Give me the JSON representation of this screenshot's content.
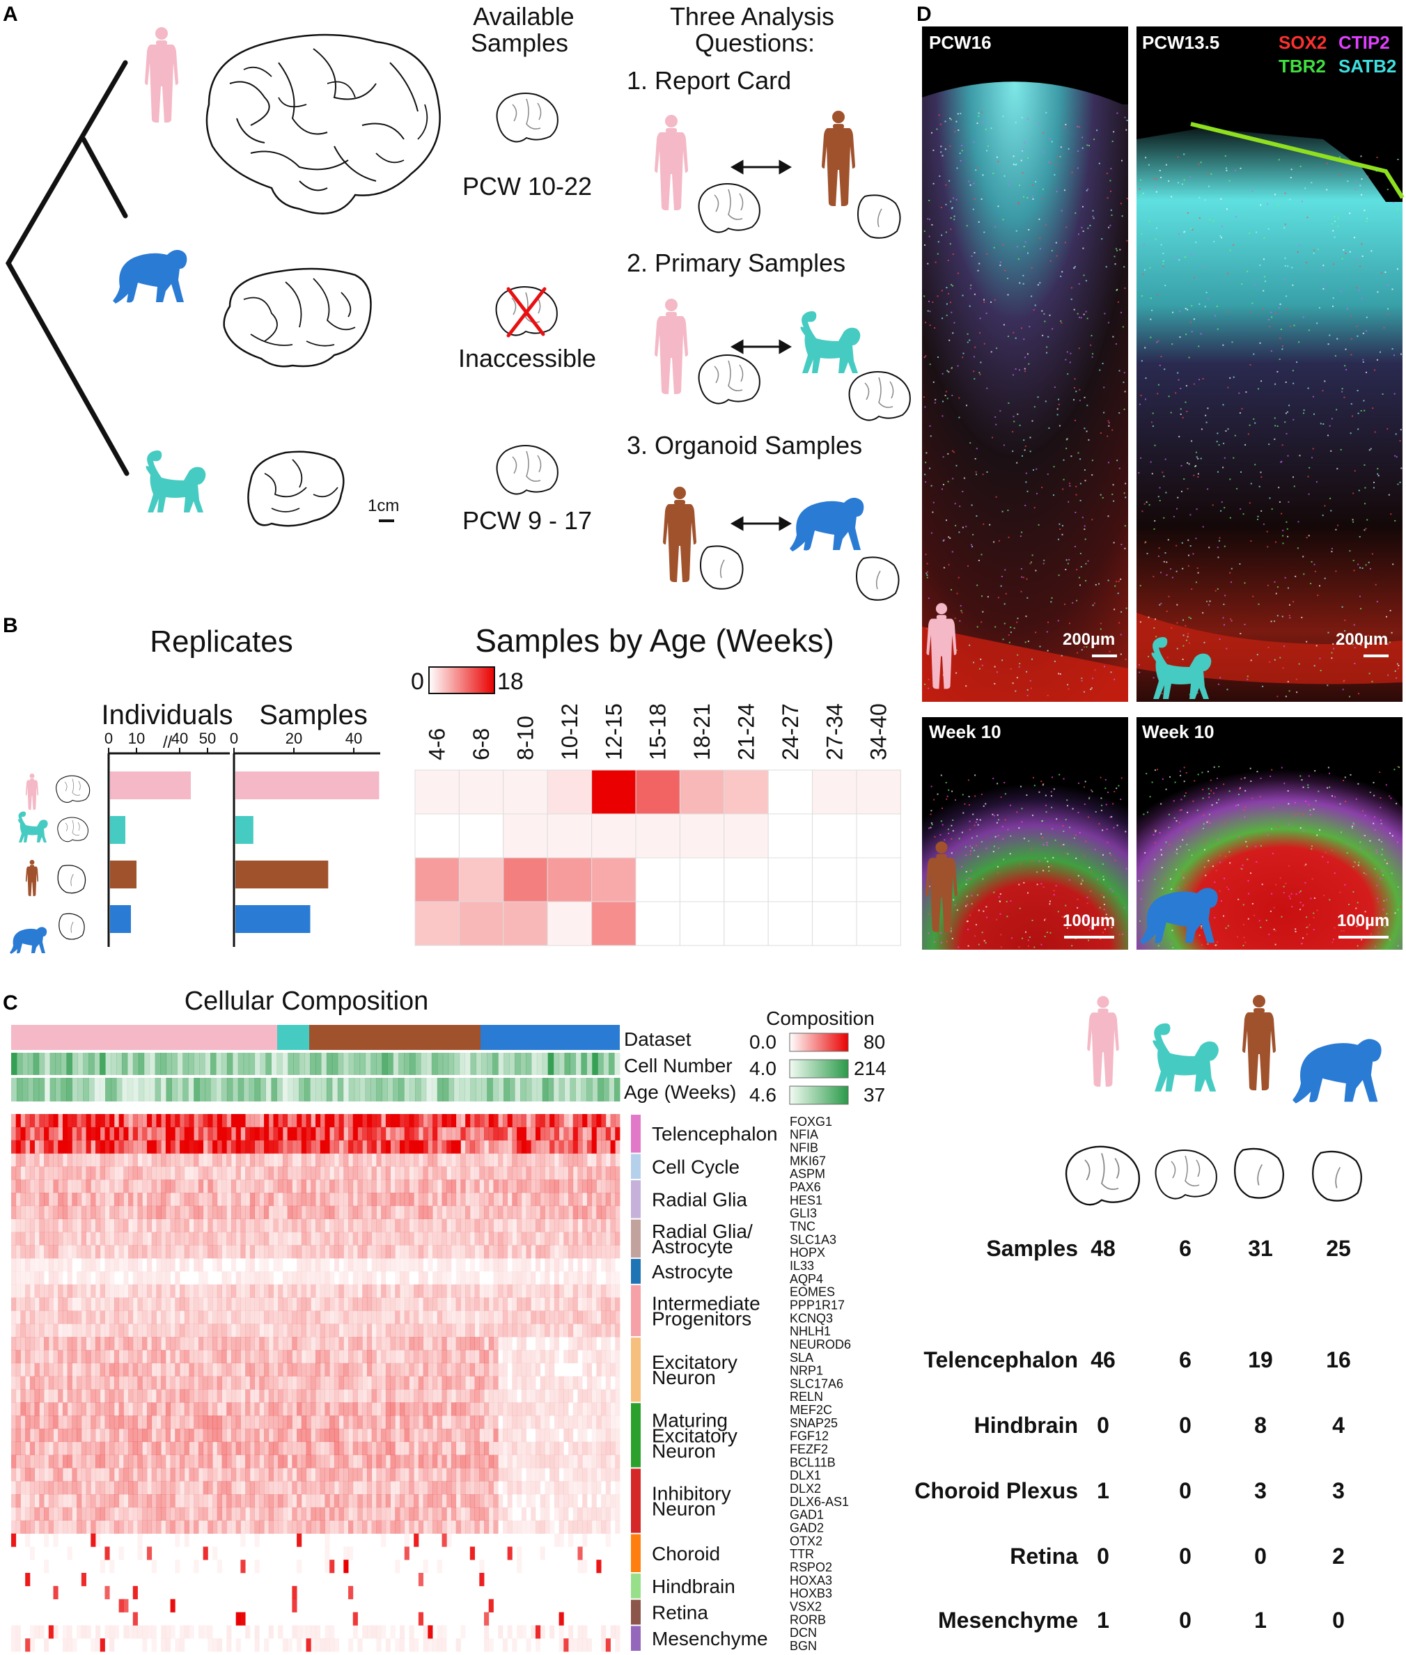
{
  "colors": {
    "human": "#f4b8c6",
    "macaque": "#45cbc1",
    "organoid_human": "#a0522d",
    "organoid_chimp": "#2a7bd4",
    "heat": "#ea0000",
    "green": "#2a9a4a"
  },
  "panel_a": {
    "label": "A",
    "col_available": [
      "Available",
      "Samples"
    ],
    "col_questions": [
      "Three Analysis",
      "Questions:"
    ],
    "human_age": "PCW 10-22",
    "chimp_status": "Inaccessible",
    "macaque_age": "PCW 9 - 17",
    "scale": "1cm",
    "q1": "1. Report Card",
    "q2": "2. Primary Samples",
    "q3": "3. Organoid Samples"
  },
  "panel_b": {
    "label": "B",
    "replicates_title": "Replicates",
    "individuals_label": "Individuals",
    "samples_label": "Samples",
    "age_title": "Samples by Age (Weeks)",
    "legend_min": "0",
    "legend_max": "18"
  },
  "chart_data": [
    {
      "type": "bar",
      "title": "Individuals",
      "axis_ticks": [
        "0",
        "10",
        "40",
        "50"
      ],
      "categories": [
        "human",
        "macaque",
        "human organoid",
        "chimp organoid"
      ],
      "values": [
        44,
        6,
        10,
        8
      ]
    },
    {
      "type": "bar",
      "title": "Samples",
      "axis_ticks": [
        "0",
        "20",
        "40"
      ],
      "categories": [
        "human",
        "macaque",
        "human organoid",
        "chimp organoid"
      ],
      "values": [
        48,
        6,
        31,
        25
      ]
    },
    {
      "type": "heatmap",
      "title": "Samples by Age (Weeks)",
      "columns": [
        "4-6",
        "6-8",
        "8-10",
        "10-12",
        "12-15",
        "15-18",
        "18-21",
        "21-24",
        "24-27",
        "27-34",
        "34-40"
      ],
      "rows": [
        "human",
        "macaque",
        "human organoid",
        "chimp organoid"
      ],
      "range": [
        0,
        18
      ],
      "values": [
        [
          1,
          1,
          1,
          2,
          18,
          11,
          5,
          4,
          0,
          1,
          1
        ],
        [
          0,
          0,
          1,
          1,
          1,
          1,
          1,
          1,
          0,
          0,
          0
        ],
        [
          7,
          4,
          9,
          7,
          6,
          0,
          0,
          0,
          0,
          0,
          0
        ],
        [
          4,
          5,
          5,
          1,
          8,
          0,
          0,
          0,
          0,
          0,
          0
        ]
      ]
    }
  ],
  "panel_c": {
    "label": "C",
    "title": "Cellular Composition",
    "track_dataset": "Dataset",
    "track_cellnumber": "Cell Number",
    "track_age": "Age (Weeks)",
    "legend_title": "Composition",
    "legend_comp_min": "0.0",
    "legend_comp_max": "80",
    "legend_cell_min": "4.0",
    "legend_cell_max": "214",
    "legend_age_min": "4.6",
    "legend_age_max": "37",
    "categories": [
      {
        "name": [
          "Telencephalon"
        ],
        "color": "#e279c8",
        "genes": [
          "FOXG1",
          "NFIA",
          "NFIB"
        ]
      },
      {
        "name": [
          "Cell Cycle"
        ],
        "color": "#b5d0ea",
        "genes": [
          "MKI67",
          "ASPM"
        ]
      },
      {
        "name": [
          "Radial Glia"
        ],
        "color": "#c6b1da",
        "genes": [
          "PAX6",
          "HES1",
          "GLI3"
        ]
      },
      {
        "name": [
          "Radial Glia/",
          "Astrocyte"
        ],
        "color": "#c2a29c",
        "genes": [
          "TNC",
          "SLC1A3",
          "HOPX"
        ]
      },
      {
        "name": [
          "Astrocyte"
        ],
        "color": "#1f74b6",
        "genes": [
          "IL33",
          "AQP4"
        ]
      },
      {
        "name": [
          "Intermediate",
          "Progenitors"
        ],
        "color": "#f6a1a7",
        "genes": [
          "EOMES",
          "PPP1R17",
          "KCNQ3",
          "NHLH1"
        ]
      },
      {
        "name": [
          "Excitatory",
          "Neuron"
        ],
        "color": "#f7bf7e",
        "genes": [
          "NEUROD6",
          "SLA",
          "NRP1",
          "SLC17A6",
          "RELN"
        ]
      },
      {
        "name": [
          "Maturing",
          "Excitatory",
          "Neuron"
        ],
        "color": "#2ca02c",
        "genes": [
          "MEF2C",
          "SNAP25",
          "FGF12",
          "FEZF2",
          "BCL11B"
        ]
      },
      {
        "name": [
          "Inhibitory",
          "Neuron"
        ],
        "color": "#d62728",
        "genes": [
          "DLX1",
          "DLX2",
          "DLX6-AS1",
          "GAD1",
          "GAD2"
        ]
      },
      {
        "name": [
          "Choroid"
        ],
        "color": "#ff7f0e",
        "genes": [
          "OTX2",
          "TTR",
          "RSPO2"
        ]
      },
      {
        "name": [
          "Hindbrain"
        ],
        "color": "#98df8a",
        "genes": [
          "HOXA3",
          "HOXB3"
        ]
      },
      {
        "name": [
          "Retina"
        ],
        "color": "#8c564b",
        "genes": [
          "VSX2",
          "RORB"
        ]
      },
      {
        "name": [
          "Mesenchyme"
        ],
        "color": "#9467bd",
        "genes": [
          "DCN",
          "BGN"
        ]
      }
    ]
  },
  "panel_d": {
    "label": "D",
    "img1_label": "PCW16",
    "img2_label": "PCW13.5",
    "img3_label": "Week 10",
    "img4_label": "Week 10",
    "marker_sox2": "SOX2",
    "marker_ctip2": "CTIP2",
    "marker_tbr2": "TBR2",
    "marker_satb2": "SATB2",
    "scale_200": "200µm",
    "scale_100": "100µm",
    "marker_colors": {
      "sox2": "#ff3030",
      "ctip2": "#e040ff",
      "tbr2": "#40e040",
      "satb2": "#40e0e0"
    }
  },
  "summary_table": {
    "columns": [
      "human",
      "macaque",
      "human organoid",
      "chimp organoid"
    ],
    "rows": [
      {
        "label": "Samples",
        "values": [
          "48",
          "6",
          "31",
          "25"
        ]
      },
      {
        "label": "Telencephalon",
        "values": [
          "46",
          "6",
          "19",
          "16"
        ]
      },
      {
        "label": "Hindbrain",
        "values": [
          "0",
          "0",
          "8",
          "4"
        ]
      },
      {
        "label": "Choroid Plexus",
        "values": [
          "1",
          "0",
          "3",
          "3"
        ]
      },
      {
        "label": "Retina",
        "values": [
          "0",
          "0",
          "0",
          "2"
        ]
      },
      {
        "label": "Mesenchyme",
        "values": [
          "1",
          "0",
          "1",
          "0"
        ]
      }
    ]
  }
}
